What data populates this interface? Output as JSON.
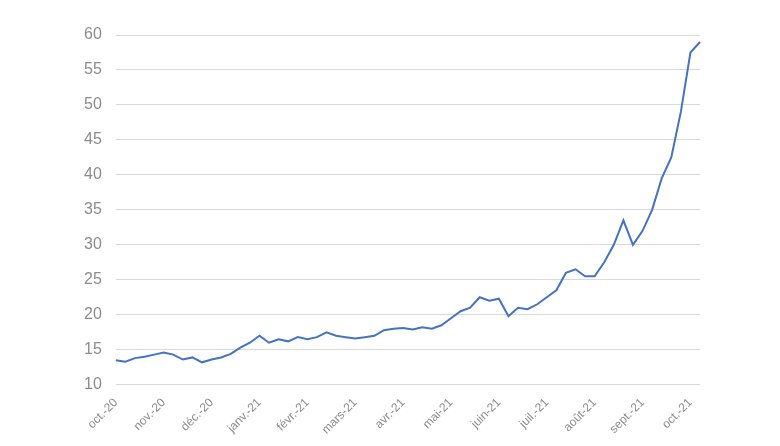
{
  "chart_data": {
    "type": "line",
    "categories": [
      "oct.-20",
      null,
      null,
      null,
      null,
      "nov.-20",
      null,
      null,
      null,
      null,
      "déc.-20",
      null,
      null,
      null,
      null,
      "janv.-21",
      null,
      null,
      null,
      null,
      "févr.-21",
      null,
      null,
      null,
      null,
      "mars-21",
      null,
      null,
      null,
      null,
      "avr.-21",
      null,
      null,
      null,
      null,
      "mai-21",
      null,
      null,
      null,
      null,
      "juin-21",
      null,
      null,
      null,
      null,
      "juil.-21",
      null,
      null,
      null,
      null,
      "août-21",
      null,
      null,
      null,
      null,
      "sept.-21",
      null,
      null,
      null,
      null,
      "oct.-21",
      null
    ],
    "values": [
      13.5,
      13.3,
      13.8,
      14.0,
      14.3,
      14.6,
      14.3,
      13.6,
      13.9,
      13.2,
      13.6,
      13.9,
      14.4,
      15.3,
      16.0,
      17.0,
      16.0,
      16.5,
      16.2,
      16.8,
      16.5,
      16.8,
      17.5,
      17.0,
      16.8,
      16.6,
      16.8,
      17.0,
      17.8,
      18.0,
      18.1,
      17.9,
      18.2,
      18.0,
      18.5,
      19.5,
      20.5,
      21.0,
      22.5,
      22.0,
      22.3,
      19.8,
      21.0,
      20.8,
      21.5,
      22.5,
      23.5,
      26.0,
      26.5,
      25.5,
      25.5,
      27.5,
      30.0,
      33.5,
      30.0,
      32.0,
      35.0,
      39.5,
      42.5,
      49.0,
      57.5,
      59.0
    ],
    "color": "#4472c4",
    "ylim": [
      10,
      60
    ],
    "yticks": [
      10,
      15,
      20,
      25,
      30,
      35,
      40,
      45,
      50,
      55,
      60
    ],
    "grid": true
  }
}
